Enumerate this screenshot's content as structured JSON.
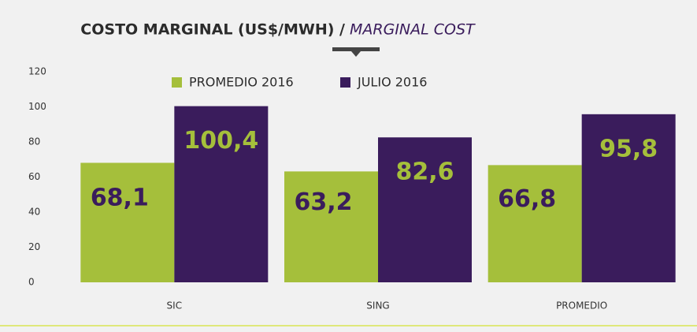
{
  "chart_data": {
    "type": "bar",
    "title": "COSTO MARGINAL  (US$/MWH) /",
    "title_en": "MARGINAL COST",
    "categories": [
      "SIC",
      "SING",
      "PROMEDIO"
    ],
    "series": [
      {
        "name": "PROMEDIO 2016",
        "color": "#a5bf3b",
        "values": [
          68.1,
          63.2,
          66.8
        ],
        "value_labels": [
          "68,1",
          "63,2",
          "66,8"
        ]
      },
      {
        "name": "JULIO 2016",
        "color": "#3a1c5c",
        "values": [
          100.4,
          82.6,
          95.8
        ],
        "value_labels": [
          "100,4",
          "82,6",
          "95,8"
        ]
      }
    ],
    "ylim": [
      0,
      120
    ],
    "yticks": [
      0,
      20,
      40,
      60,
      80,
      100,
      120
    ],
    "grid": false,
    "legend": "top"
  }
}
